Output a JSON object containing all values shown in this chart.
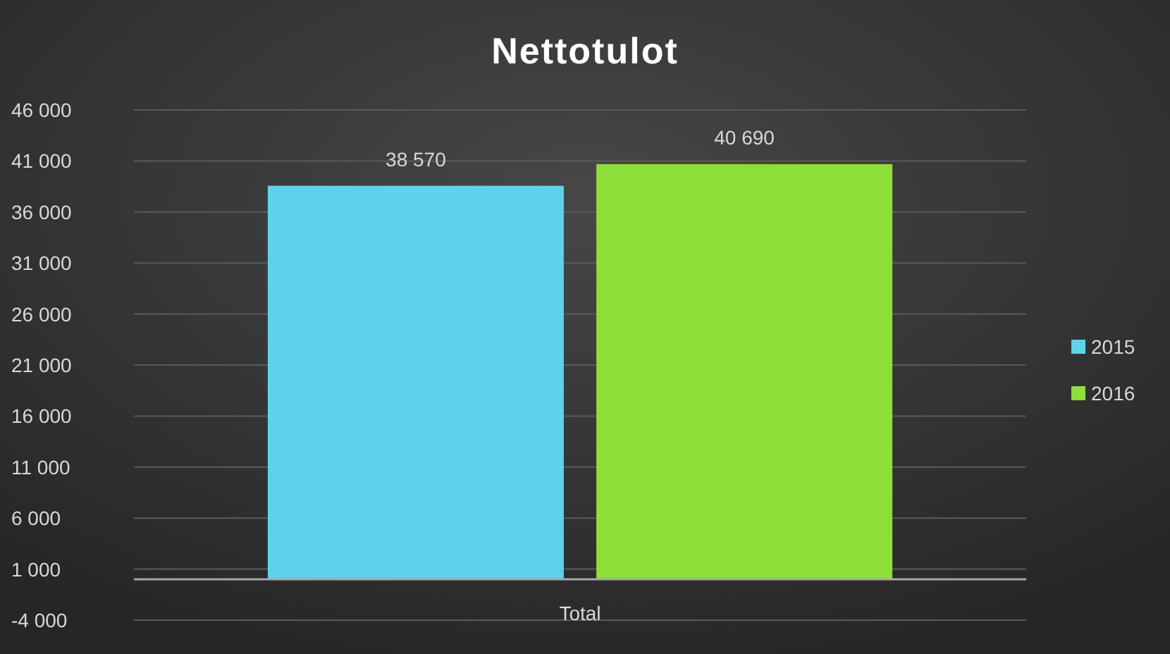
{
  "chart_data": {
    "type": "bar",
    "title": "Nettotulot",
    "categories": [
      "Total"
    ],
    "series": [
      {
        "name": "2015",
        "color": "#5dd3ea",
        "values": [
          38570
        ],
        "value_labels": [
          "38 570"
        ]
      },
      {
        "name": "2016",
        "color": "#8ede3a",
        "values": [
          40690
        ],
        "value_labels": [
          "40 690"
        ]
      }
    ],
    "ylim": [
      -4000,
      46000
    ],
    "yticks": [
      {
        "value": -4000,
        "label": "-4 000"
      },
      {
        "value": 1000,
        "label": "1 000"
      },
      {
        "value": 6000,
        "label": "6 000"
      },
      {
        "value": 11000,
        "label": "11 000"
      },
      {
        "value": 16000,
        "label": "16 000"
      },
      {
        "value": 21000,
        "label": "21 000"
      },
      {
        "value": 26000,
        "label": "26 000"
      },
      {
        "value": 31000,
        "label": "31 000"
      },
      {
        "value": 36000,
        "label": "36 000"
      },
      {
        "value": 41000,
        "label": "41 000"
      },
      {
        "value": 46000,
        "label": "46 000"
      }
    ],
    "grid": "y",
    "legend": "right"
  }
}
